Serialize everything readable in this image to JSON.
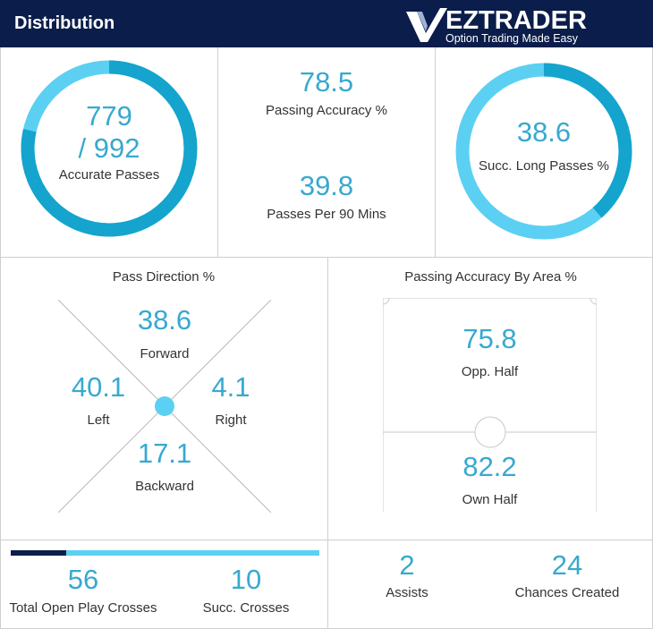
{
  "header": {
    "title": "Distribution"
  },
  "logo": {
    "brand": "EZTRADER",
    "tagline": "Option Trading Made Easy",
    "icon": "ez-check-icon"
  },
  "colors": {
    "navy": "#0b1d4a",
    "accent": "#38a9cf",
    "ring_light": "#5bd0f2",
    "ring_dark": "#14a4cd"
  },
  "accurate_passes": {
    "line1": "779",
    "line2": "/ 992",
    "label": "Accurate Passes",
    "accurate": 779,
    "total": 992
  },
  "passing_accuracy": {
    "value": "78.5",
    "label": "Passing Accuracy %"
  },
  "passes_per_90": {
    "value": "39.8",
    "label": "Passes Per 90 Mins"
  },
  "long_passes": {
    "value": "38.6",
    "label": "Succ. Long Passes %",
    "percent": 38.6
  },
  "pass_direction": {
    "title": "Pass Direction %",
    "forward": {
      "value": "38.6",
      "label": "Forward"
    },
    "left": {
      "value": "40.1",
      "label": "Left"
    },
    "right": {
      "value": "4.1",
      "label": "Right"
    },
    "backward": {
      "value": "17.1",
      "label": "Backward"
    }
  },
  "accuracy_by_area": {
    "title": "Passing Accuracy By Area %",
    "opp_half": {
      "value": "75.8",
      "label": "Opp. Half"
    },
    "own_half": {
      "value": "82.2",
      "label": "Own Half"
    }
  },
  "crosses": {
    "total": {
      "value": "56",
      "label": "Total Open Play Crosses"
    },
    "succ": {
      "value": "10",
      "label": "Succ. Crosses"
    },
    "fraction": 0.18
  },
  "assists": {
    "value": "2",
    "label": "Assists"
  },
  "chances": {
    "value": "24",
    "label": "Chances Created"
  }
}
